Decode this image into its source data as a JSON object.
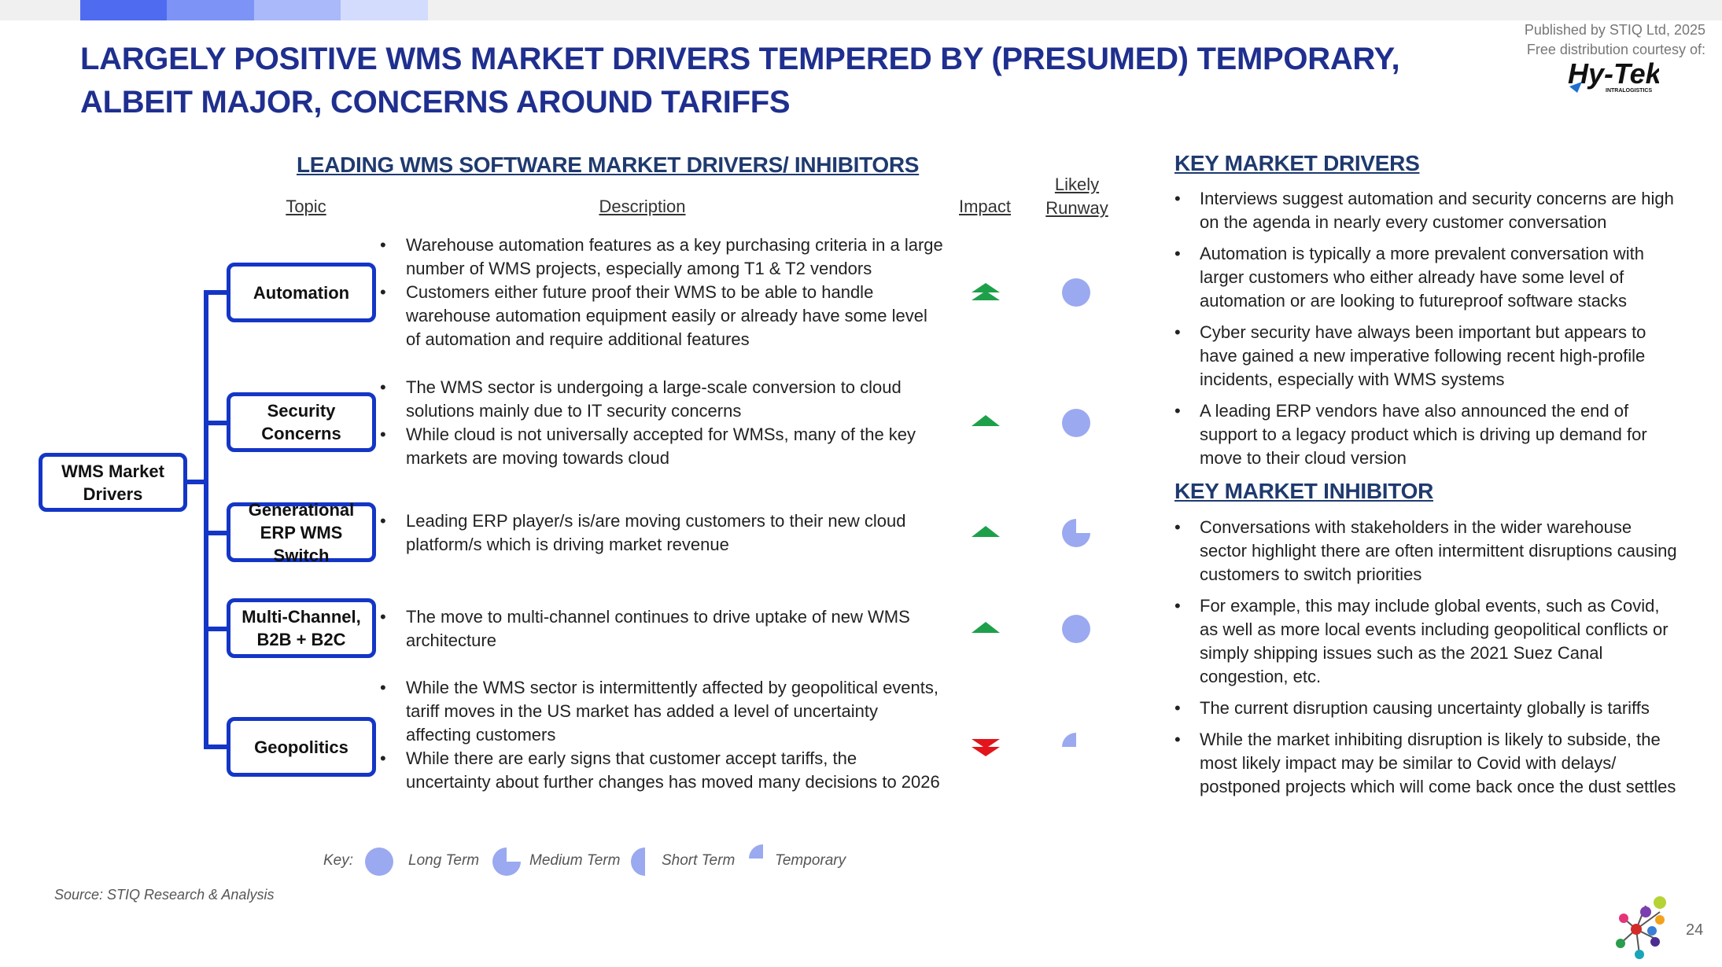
{
  "header": {
    "title": "Largely positive WMS market drivers tempered by (presumed) temporary, albeit major, concerns around tariffs",
    "published": "Published by STIQ Ltd, 2025",
    "courtesy": "Free distribution courtesy of:",
    "logo_text": "Hy-Tek",
    "logo_sub": "INTRALOGISTICS"
  },
  "colors": {
    "accent": "#1f2f8f",
    "box_border": "#1436c6",
    "runway": "#9aa9f0",
    "impact_up": "#1ea04a",
    "impact_down": "#e3141b",
    "topbar": [
      "#4f6cf0",
      "#7d93f5",
      "#aab9fa",
      "#d3dcfd"
    ]
  },
  "table": {
    "heading": "LEADING WMS SOFTWARE MARKET DRIVERS/ INHIBITORS",
    "col_topic": "Topic",
    "col_description": "Description",
    "col_impact": "Impact",
    "col_runway": "Likely Runway",
    "root": "WMS Market Drivers",
    "rows": [
      {
        "topic": "Automation",
        "bullets": [
          "Warehouse automation features as a key purchasing criteria in a large number of WMS projects, especially among T1 & T2 vendors",
          "Customers either future proof their WMS to be able to handle warehouse automation equipment easily or already have some level of automation and require additional features"
        ],
        "impact": "double-up",
        "runway": "long"
      },
      {
        "topic": "Security Concerns",
        "bullets": [
          "The WMS sector is undergoing a large-scale conversion to cloud solutions mainly due to IT security concerns",
          "While cloud is not universally accepted for WMSs, many of the key markets are moving towards cloud"
        ],
        "impact": "up",
        "runway": "long"
      },
      {
        "topic": "Generational ERP WMS Switch",
        "bullets": [
          "Leading ERP player/s is/are moving customers to their new cloud platform/s which is driving market revenue"
        ],
        "impact": "up",
        "runway": "medium"
      },
      {
        "topic": "Multi-Channel, B2B + B2C",
        "bullets": [
          "The move to multi-channel continues to drive uptake of new WMS architecture"
        ],
        "impact": "up",
        "runway": "long"
      },
      {
        "topic": "Geopolitics",
        "bullets": [
          "While the WMS sector is intermittently affected by geopolitical events, tariff moves in the US market has added a level of uncertainty affecting customers",
          "While there are early signs that customer accept tariffs, the uncertainty about further changes has moved many decisions to 2026"
        ],
        "impact": "double-down",
        "runway": "temporary"
      }
    ]
  },
  "key": {
    "label": "Key:",
    "long": "Long Term",
    "medium": "Medium Term",
    "short": "Short Term",
    "temporary": "Temporary"
  },
  "drivers": {
    "heading": "KEY MARKET DRIVERS",
    "items": [
      "Interviews suggest automation and security concerns are high on the agenda in nearly every customer conversation",
      "Automation is typically a more prevalent conversation with larger customers who either already have some level of automation or are looking to futureproof software stacks",
      "Cyber security have always been important but appears to have gained a new imperative following recent high-profile incidents, especially with WMS systems",
      "A leading ERP vendors have also announced the end of support to a legacy product which is driving up demand for move to their cloud version"
    ]
  },
  "inhibitor": {
    "heading": "KEY MARKET INHIBITOR",
    "items": [
      "Conversations with stakeholders in the wider warehouse sector highlight there are often intermittent disruptions causing customers to switch priorities",
      "For example, this may include global events, such as Covid, as well as more local events including geopolitical conflicts or simply shipping issues such as the 2021 Suez Canal congestion, etc.",
      "The current disruption causing uncertainty globally is tariffs",
      "While the market inhibiting disruption is likely to subside, the most likely impact may be similar to Covid with delays/ postponed projects which will come back once the dust settles"
    ]
  },
  "footer": {
    "source": "Source: STIQ Research & Analysis",
    "page": "24"
  }
}
